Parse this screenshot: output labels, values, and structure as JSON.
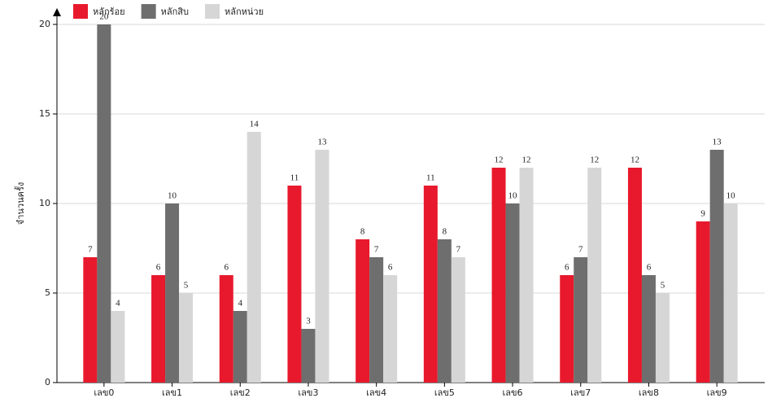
{
  "chart_data": {
    "type": "bar",
    "y_label": "จำนวนครั้ง",
    "categories": [
      "เลข0",
      "เลข1",
      "เลข2",
      "เลข3",
      "เลข4",
      "เลข5",
      "เลข6",
      "เลข7",
      "เลข8",
      "เลข9"
    ],
    "series": [
      {
        "name": "หลักร้อย",
        "color": "#e8192c",
        "values": [
          7,
          6,
          6,
          11,
          8,
          11,
          12,
          6,
          12,
          9
        ]
      },
      {
        "name": "หลักสิบ",
        "color": "#6e6e6e",
        "values": [
          20,
          10,
          4,
          3,
          7,
          8,
          10,
          7,
          6,
          13
        ]
      },
      {
        "name": "หลักหน่วย",
        "color": "#d6d6d6",
        "values": [
          4,
          5,
          14,
          13,
          6,
          7,
          12,
          12,
          5,
          10
        ]
      }
    ],
    "ylim": [
      0,
      20
    ],
    "yticks": [
      0,
      5,
      10,
      15,
      20
    ],
    "grid": true
  }
}
